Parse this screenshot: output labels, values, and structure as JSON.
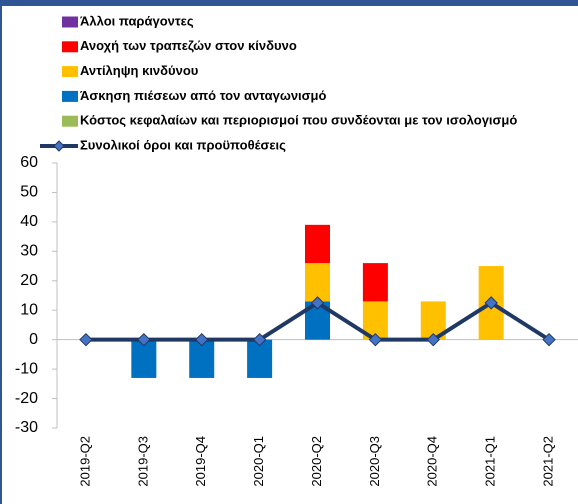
{
  "chart_data": {
    "type": "bar",
    "categories": [
      "2019-Q2",
      "2019-Q3",
      "2019-Q4",
      "2020-Q1",
      "2020-Q2",
      "2020-Q3",
      "2020-Q4",
      "2021-Q1",
      "2021-Q2"
    ],
    "series": [
      {
        "name": "Άλλοι παράγοντες",
        "color": "#7030a0",
        "values": [
          0,
          0,
          0,
          0,
          0,
          0,
          0,
          0,
          0
        ]
      },
      {
        "name": "Ανοχή των τραπεζών στον κίνδυνο",
        "color": "#ff0000",
        "values": [
          0,
          0,
          0,
          0,
          13,
          13,
          0,
          0,
          0
        ]
      },
      {
        "name": "Αντίληψη κινδύνου",
        "color": "#ffc000",
        "values": [
          0,
          0,
          0,
          0,
          13,
          13,
          13,
          25,
          0
        ]
      },
      {
        "name": "Άσκηση πιέσεων από τον ανταγωνισμό",
        "color": "#0070c0",
        "values": [
          0,
          -13,
          -13,
          -13,
          13,
          0,
          0,
          0,
          0
        ]
      },
      {
        "name": "Κόστος κεφαλαίων και περιορισμοί που συνδέονται με τον ισολογισμό",
        "color": "#9bbb59",
        "values": [
          0,
          0,
          0,
          0,
          0,
          0,
          0,
          0,
          0
        ]
      },
      {
        "name": "Συνολικοί όροι και προϋποθέσεις",
        "color": "#1f3864",
        "type": "line",
        "values": [
          0,
          0,
          0,
          0,
          12.5,
          0,
          0,
          12.5,
          0
        ]
      }
    ],
    "ylim": [
      -30,
      60
    ],
    "yticks": [
      -30,
      -20,
      -10,
      0,
      10,
      20,
      30,
      40,
      50,
      60
    ],
    "grid": false,
    "legend": "top"
  }
}
